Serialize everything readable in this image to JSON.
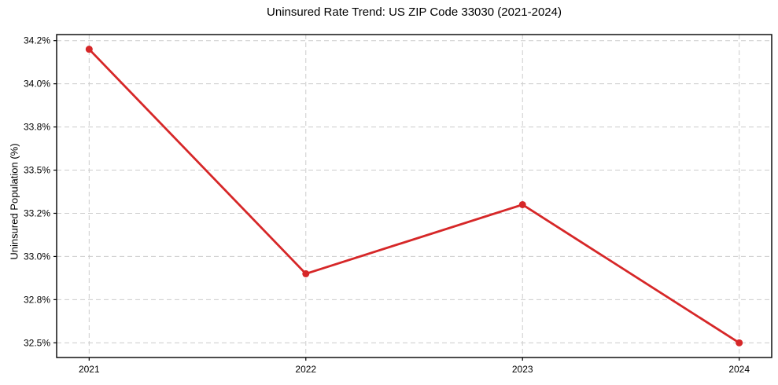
{
  "chart_data": {
    "type": "line",
    "title": "Uninsured Rate Trend: US ZIP Code 33030 (2021-2024)",
    "xlabel": "",
    "ylabel": "Uninsured Population (%)",
    "x": [
      2021,
      2022,
      2023,
      2024
    ],
    "xtick_labels": [
      "2021",
      "2022",
      "2023",
      "2024"
    ],
    "values": [
      34.2,
      32.9,
      33.3,
      32.5
    ],
    "yticks": [
      32.5,
      32.75,
      33.0,
      33.25,
      33.5,
      33.75,
      34.0,
      34.25
    ],
    "ytick_labels": [
      "32.5%",
      "32.8%",
      "33.0%",
      "33.2%",
      "33.5%",
      "33.8%",
      "34.0%",
      "34.2%"
    ],
    "xlim": [
      2020.85,
      2024.15
    ],
    "ylim": [
      32.415,
      34.285
    ],
    "grid": true,
    "grid_style": "dashed",
    "line_color": "#d62728",
    "marker": "circle",
    "legend": "none"
  }
}
